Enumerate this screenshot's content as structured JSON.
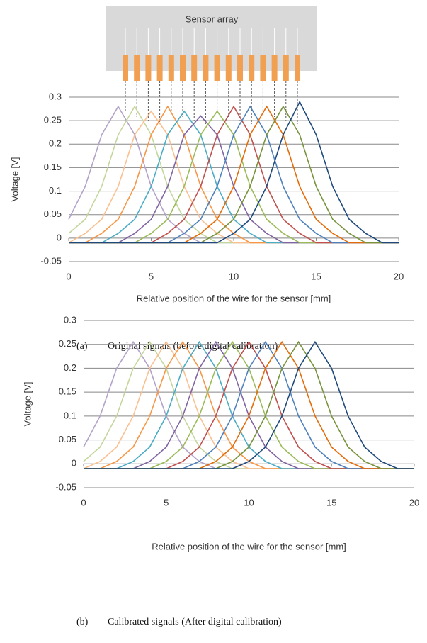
{
  "sensor_array_label": "Sensor array",
  "chart_data": [
    {
      "type": "line",
      "label": "(a)",
      "caption": "Original signals (before digital calibration)",
      "y_label": "Voltage [V]",
      "x_label": "Relative position of the wire for the sensor [mm]",
      "x": [
        0,
        1,
        2,
        3,
        4,
        5,
        6,
        7,
        8,
        9,
        10,
        11,
        12,
        13,
        14,
        15,
        16,
        17,
        18,
        19,
        20
      ],
      "xlim": [
        0,
        20
      ],
      "xticks": [
        0,
        5,
        10,
        15,
        20
      ],
      "ylim": [
        -0.05,
        0.3
      ],
      "yticks": [
        -0.05,
        0,
        0.05,
        0.1,
        0.15,
        0.2,
        0.25,
        0.3
      ],
      "grid": true,
      "series": [
        {
          "color": "#b3a2c7",
          "values": [
            0.04,
            0.11,
            0.22,
            0.28,
            0.22,
            0.11,
            0.04,
            0.01,
            -0.01,
            -0.01,
            -0.01,
            -0.01,
            -0.01,
            -0.01,
            -0.01,
            -0.01,
            -0.01,
            -0.01,
            -0.01,
            -0.01,
            -0.01
          ]
        },
        {
          "color": "#c3d69b",
          "values": [
            0.01,
            0.04,
            0.11,
            0.22,
            0.28,
            0.22,
            0.11,
            0.04,
            0.01,
            -0.01,
            -0.01,
            -0.01,
            -0.01,
            -0.01,
            -0.01,
            -0.01,
            -0.01,
            -0.01,
            -0.01,
            -0.01,
            -0.01
          ]
        },
        {
          "color": "#fac090",
          "values": [
            -0.01,
            0.01,
            0.04,
            0.11,
            0.22,
            0.27,
            0.22,
            0.11,
            0.04,
            0.01,
            -0.01,
            -0.01,
            -0.01,
            -0.01,
            -0.01,
            -0.01,
            -0.01,
            -0.01,
            -0.01,
            -0.01,
            -0.01
          ]
        },
        {
          "color": "#f79646",
          "values": [
            -0.01,
            -0.01,
            0.01,
            0.04,
            0.11,
            0.22,
            0.28,
            0.22,
            0.11,
            0.04,
            0.01,
            -0.01,
            -0.01,
            -0.01,
            -0.01,
            -0.01,
            -0.01,
            -0.01,
            -0.01,
            -0.01,
            -0.01
          ]
        },
        {
          "color": "#4bacc6",
          "values": [
            -0.01,
            -0.01,
            -0.01,
            0.01,
            0.04,
            0.11,
            0.22,
            0.27,
            0.22,
            0.11,
            0.04,
            0.01,
            -0.01,
            -0.01,
            -0.01,
            -0.01,
            -0.01,
            -0.01,
            -0.01,
            -0.01,
            -0.01
          ]
        },
        {
          "color": "#8064a2",
          "values": [
            -0.01,
            -0.01,
            -0.01,
            -0.01,
            0.01,
            0.04,
            0.11,
            0.22,
            0.26,
            0.22,
            0.11,
            0.04,
            0.01,
            -0.01,
            -0.01,
            -0.01,
            -0.01,
            -0.01,
            -0.01,
            -0.01,
            -0.01
          ]
        },
        {
          "color": "#9bbb59",
          "values": [
            -0.01,
            -0.01,
            -0.01,
            -0.01,
            -0.01,
            0.01,
            0.04,
            0.11,
            0.22,
            0.27,
            0.22,
            0.11,
            0.04,
            0.01,
            -0.01,
            -0.01,
            -0.01,
            -0.01,
            -0.01,
            -0.01,
            -0.01
          ]
        },
        {
          "color": "#c0504d",
          "values": [
            -0.01,
            -0.01,
            -0.01,
            -0.01,
            -0.01,
            -0.01,
            0.01,
            0.04,
            0.11,
            0.22,
            0.28,
            0.22,
            0.11,
            0.04,
            0.01,
            -0.01,
            -0.01,
            -0.01,
            -0.01,
            -0.01,
            -0.01
          ]
        },
        {
          "color": "#4f81bd",
          "values": [
            -0.01,
            -0.01,
            -0.01,
            -0.01,
            -0.01,
            -0.01,
            -0.01,
            0.01,
            0.04,
            0.11,
            0.22,
            0.28,
            0.22,
            0.11,
            0.04,
            0.01,
            -0.01,
            -0.01,
            -0.01,
            -0.01,
            -0.01
          ]
        },
        {
          "color": "#e46c0a",
          "values": [
            -0.01,
            -0.01,
            -0.01,
            -0.01,
            -0.01,
            -0.01,
            -0.01,
            -0.01,
            0.01,
            0.04,
            0.11,
            0.22,
            0.28,
            0.22,
            0.11,
            0.04,
            0.01,
            -0.01,
            -0.01,
            -0.01,
            -0.01
          ]
        },
        {
          "color": "#77933c",
          "values": [
            -0.01,
            -0.01,
            -0.01,
            -0.01,
            -0.01,
            -0.01,
            -0.01,
            -0.01,
            -0.01,
            0.01,
            0.04,
            0.11,
            0.22,
            0.28,
            0.22,
            0.11,
            0.04,
            0.01,
            -0.01,
            -0.01,
            -0.01
          ]
        },
        {
          "color": "#1f497d",
          "values": [
            -0.01,
            -0.01,
            -0.01,
            -0.01,
            -0.01,
            -0.01,
            -0.01,
            -0.01,
            -0.01,
            -0.01,
            0.01,
            0.04,
            0.11,
            0.22,
            0.29,
            0.22,
            0.11,
            0.04,
            0.01,
            -0.01,
            -0.01
          ]
        }
      ]
    },
    {
      "type": "line",
      "label": "(b)",
      "caption": "Calibrated signals (After digital calibration)",
      "y_label": "Voltage [V]",
      "x_label": "Relative position of the wire for the sensor [mm]",
      "x": [
        0,
        1,
        2,
        3,
        4,
        5,
        6,
        7,
        8,
        9,
        10,
        11,
        12,
        13,
        14,
        15,
        16,
        17,
        18,
        19,
        20
      ],
      "xlim": [
        0,
        20
      ],
      "xticks": [
        0,
        5,
        10,
        15,
        20
      ],
      "ylim": [
        -0.05,
        0.3
      ],
      "yticks": [
        -0.05,
        0,
        0.05,
        0.1,
        0.15,
        0.2,
        0.25,
        0.3
      ],
      "grid": true,
      "series": [
        {
          "color": "#b3a2c7",
          "values": [
            0.035,
            0.1,
            0.2,
            0.255,
            0.2,
            0.1,
            0.035,
            0.005,
            -0.01,
            -0.01,
            -0.01,
            -0.01,
            -0.01,
            -0.01,
            -0.01,
            -0.01,
            -0.01,
            -0.01,
            -0.01,
            -0.01,
            -0.01
          ]
        },
        {
          "color": "#c3d69b",
          "values": [
            0.005,
            0.035,
            0.1,
            0.2,
            0.255,
            0.2,
            0.1,
            0.035,
            0.005,
            -0.01,
            -0.01,
            -0.01,
            -0.01,
            -0.01,
            -0.01,
            -0.01,
            -0.01,
            -0.01,
            -0.01,
            -0.01,
            -0.01
          ]
        },
        {
          "color": "#fac090",
          "values": [
            -0.01,
            0.005,
            0.035,
            0.1,
            0.2,
            0.255,
            0.2,
            0.1,
            0.035,
            0.005,
            -0.01,
            -0.01,
            -0.01,
            -0.01,
            -0.01,
            -0.01,
            -0.01,
            -0.01,
            -0.01,
            -0.01,
            -0.01
          ]
        },
        {
          "color": "#f79646",
          "values": [
            -0.01,
            -0.01,
            0.005,
            0.035,
            0.1,
            0.2,
            0.255,
            0.2,
            0.1,
            0.035,
            0.005,
            -0.01,
            -0.01,
            -0.01,
            -0.01,
            -0.01,
            -0.01,
            -0.01,
            -0.01,
            -0.01,
            -0.01
          ]
        },
        {
          "color": "#4bacc6",
          "values": [
            -0.01,
            -0.01,
            -0.01,
            0.005,
            0.035,
            0.1,
            0.2,
            0.255,
            0.2,
            0.1,
            0.035,
            0.005,
            -0.01,
            -0.01,
            -0.01,
            -0.01,
            -0.01,
            -0.01,
            -0.01,
            -0.01,
            -0.01
          ]
        },
        {
          "color": "#8064a2",
          "values": [
            -0.01,
            -0.01,
            -0.01,
            -0.01,
            0.005,
            0.035,
            0.1,
            0.2,
            0.255,
            0.2,
            0.1,
            0.035,
            0.005,
            -0.01,
            -0.01,
            -0.01,
            -0.01,
            -0.01,
            -0.01,
            -0.01,
            -0.01
          ]
        },
        {
          "color": "#9bbb59",
          "values": [
            -0.01,
            -0.01,
            -0.01,
            -0.01,
            -0.01,
            0.005,
            0.035,
            0.1,
            0.2,
            0.255,
            0.2,
            0.1,
            0.035,
            0.005,
            -0.01,
            -0.01,
            -0.01,
            -0.01,
            -0.01,
            -0.01,
            -0.01
          ]
        },
        {
          "color": "#c0504d",
          "values": [
            -0.01,
            -0.01,
            -0.01,
            -0.01,
            -0.01,
            -0.01,
            0.005,
            0.035,
            0.1,
            0.2,
            0.255,
            0.2,
            0.1,
            0.035,
            0.005,
            -0.01,
            -0.01,
            -0.01,
            -0.01,
            -0.01,
            -0.01
          ]
        },
        {
          "color": "#4f81bd",
          "values": [
            -0.01,
            -0.01,
            -0.01,
            -0.01,
            -0.01,
            -0.01,
            -0.01,
            0.005,
            0.035,
            0.1,
            0.2,
            0.255,
            0.2,
            0.1,
            0.035,
            0.005,
            -0.01,
            -0.01,
            -0.01,
            -0.01,
            -0.01
          ]
        },
        {
          "color": "#e46c0a",
          "values": [
            -0.01,
            -0.01,
            -0.01,
            -0.01,
            -0.01,
            -0.01,
            -0.01,
            -0.01,
            0.005,
            0.035,
            0.1,
            0.2,
            0.255,
            0.2,
            0.1,
            0.035,
            0.005,
            -0.01,
            -0.01,
            -0.01,
            -0.01
          ]
        },
        {
          "color": "#77933c",
          "values": [
            -0.01,
            -0.01,
            -0.01,
            -0.01,
            -0.01,
            -0.01,
            -0.01,
            -0.01,
            -0.01,
            0.005,
            0.035,
            0.1,
            0.2,
            0.255,
            0.2,
            0.1,
            0.035,
            0.005,
            -0.01,
            -0.01,
            -0.01
          ]
        },
        {
          "color": "#1f497d",
          "values": [
            -0.01,
            -0.01,
            -0.01,
            -0.01,
            -0.01,
            -0.01,
            -0.01,
            -0.01,
            -0.01,
            -0.01,
            0.005,
            0.035,
            0.1,
            0.2,
            0.255,
            0.2,
            0.1,
            0.035,
            0.005,
            -0.01,
            -0.01
          ]
        }
      ]
    }
  ]
}
